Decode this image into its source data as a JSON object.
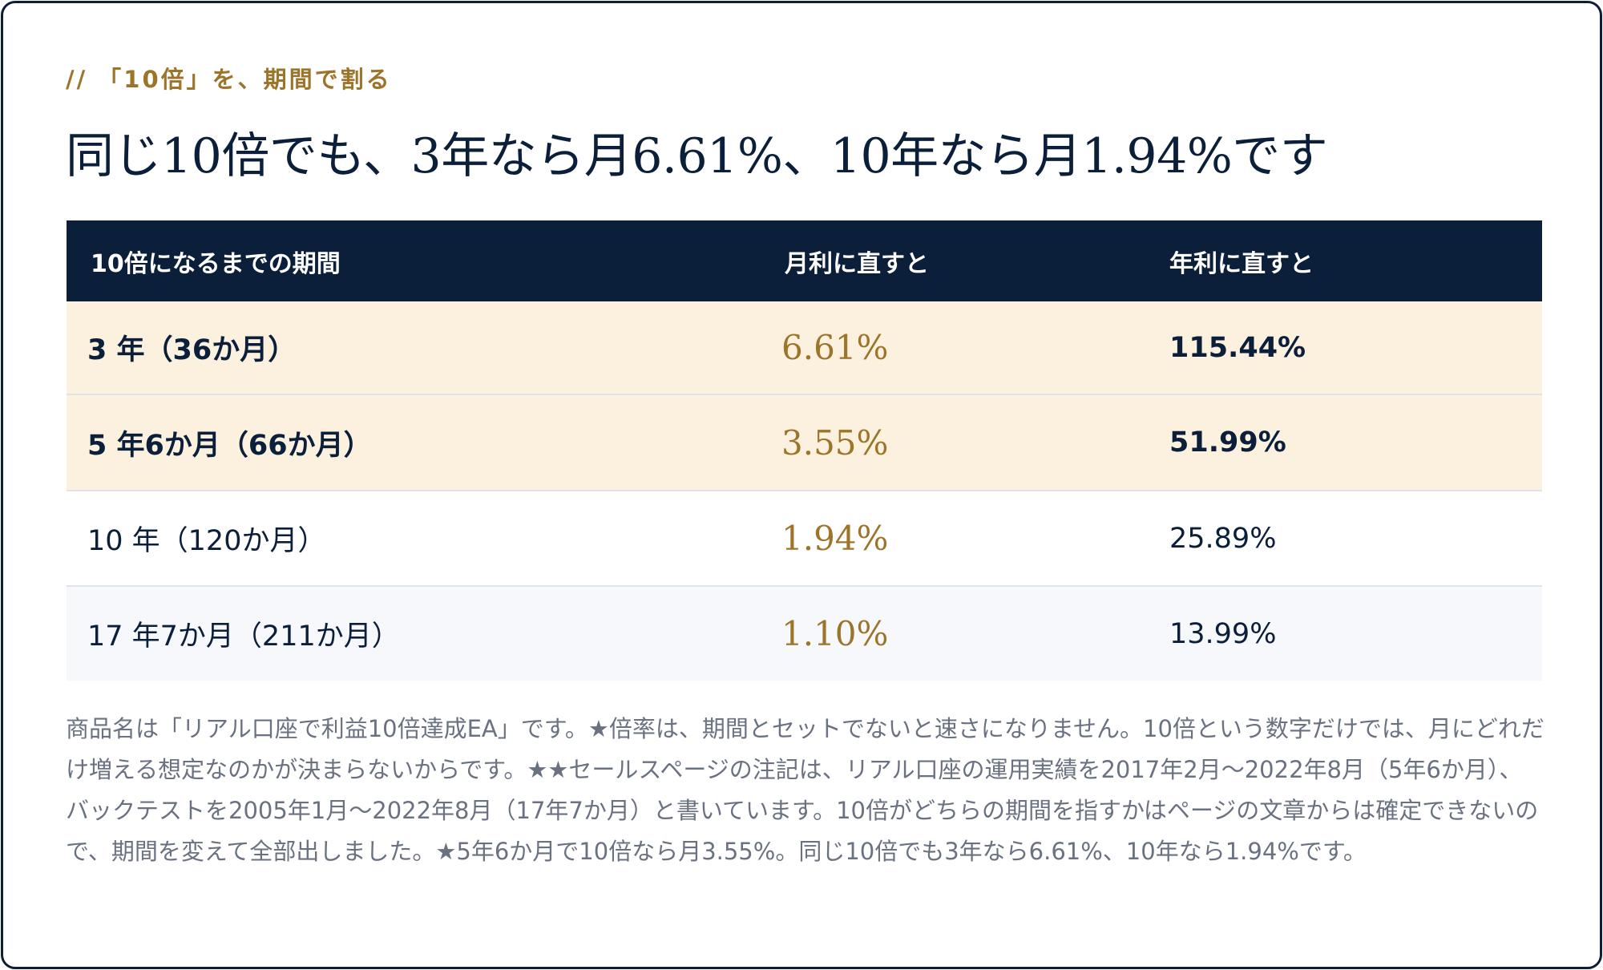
{
  "eyebrow": "// 「10倍」を、期間で割る",
  "headline": "同じ10倍でも、3年なら月6.61%、10年なら月1.94%です",
  "table": {
    "headers": [
      "10倍になるまでの期間",
      "月利に直すと",
      "年利に直すと"
    ],
    "rows": [
      {
        "period": "3 年（36か月）",
        "monthly": "6.61%",
        "annual": "115.44%",
        "highlight": true
      },
      {
        "period": "5 年6か月（66か月）",
        "monthly": "3.55%",
        "annual": "51.99%",
        "highlight": true
      },
      {
        "period": "10 年（120か月）",
        "monthly": "1.94%",
        "annual": "25.89%",
        "highlight": false
      },
      {
        "period": "17 年7か月（211か月）",
        "monthly": "1.10%",
        "annual": "13.99%",
        "highlight": false
      }
    ]
  },
  "footnote": "商品名は「リアル口座で利益10倍達成EA」です。★倍率は、期間とセットでないと速さになりません。10倍という数字だけでは、月にどれだけ増える想定なのかが決まらないからです。★★セールスページの注記は、リアル口座の運用実績を2017年2月〜2022年8月（5年6か月）、バックテストを2005年1月〜2022年8月（17年7か月）と書いています。10倍がどちらの期間を指すかはページの文章からは確定できないので、期間を変えて全部出しました。★5年6か月で10倍なら月3.55%。同じ10倍でも3年なら6.61%、10年なら1.94%です。",
  "colors": {
    "navy": "#0b1e3a",
    "gold": "#9c742a",
    "highlight_row": "#fbf1de",
    "alt_row": "#f6f8fb",
    "muted_text": "#6a7282"
  }
}
